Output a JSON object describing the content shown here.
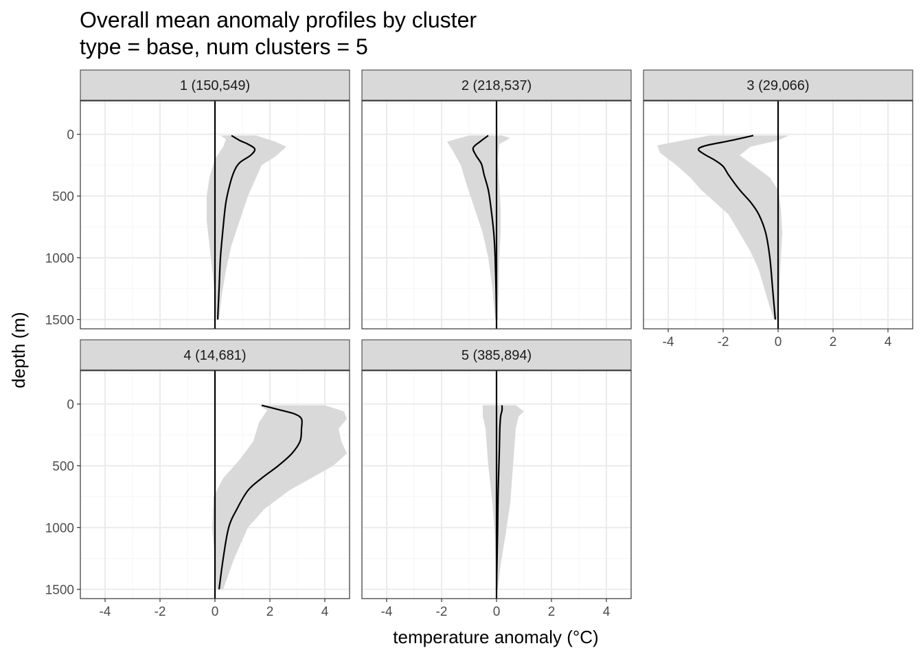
{
  "chart_data": {
    "type": "area",
    "title": "Overall mean anomaly profiles by cluster",
    "subtitle": "type = base, num clusters = 5",
    "xlabel": "temperature anomaly (°C)",
    "ylabel": "depth (m)",
    "xlim": [
      -4.9,
      4.9
    ],
    "ylim": [
      1575,
      -270
    ],
    "x_ticks": [
      -4,
      -2,
      0,
      2,
      4
    ],
    "x_tick_labels": [
      "-4",
      "-2",
      "0",
      "2",
      "4"
    ],
    "y_ticks": [
      0,
      500,
      1000,
      1500
    ],
    "y_tick_labels": [
      "0",
      "500",
      "1000",
      "1500"
    ],
    "grid": true,
    "reference_line_x": 0,
    "colors": {
      "ribbon": "#d9d9d9",
      "line": "#000000",
      "strip": "#d9d9d9",
      "grid_major": "#ebebeb",
      "grid_minor": "#f5f5f5"
    },
    "panels": [
      {
        "label": "1 (150,549)",
        "mean": [
          [
            0.6,
            10
          ],
          [
            0.9,
            50
          ],
          [
            1.2,
            80
          ],
          [
            1.45,
            120
          ],
          [
            1.3,
            170
          ],
          [
            0.9,
            230
          ],
          [
            0.7,
            300
          ],
          [
            0.55,
            400
          ],
          [
            0.4,
            550
          ],
          [
            0.3,
            750
          ],
          [
            0.2,
            1000
          ],
          [
            0.15,
            1250
          ],
          [
            0.1,
            1500
          ]
        ],
        "lower": [
          [
            0.2,
            10
          ],
          [
            0.4,
            40
          ],
          [
            0.3,
            100
          ],
          [
            0.0,
            200
          ],
          [
            -0.2,
            350
          ],
          [
            -0.3,
            500
          ],
          [
            -0.3,
            700
          ],
          [
            -0.2,
            900
          ],
          [
            -0.1,
            1100
          ],
          [
            0.0,
            1300
          ],
          [
            0.05,
            1500
          ]
        ],
        "upper": [
          [
            1.5,
            10
          ],
          [
            2.2,
            60
          ],
          [
            2.6,
            100
          ],
          [
            2.2,
            180
          ],
          [
            1.7,
            250
          ],
          [
            1.5,
            350
          ],
          [
            1.2,
            500
          ],
          [
            0.9,
            700
          ],
          [
            0.6,
            900
          ],
          [
            0.4,
            1100
          ],
          [
            0.25,
            1300
          ],
          [
            0.15,
            1500
          ]
        ]
      },
      {
        "label": "2 (218,537)",
        "mean": [
          [
            -0.3,
            10
          ],
          [
            -0.6,
            60
          ],
          [
            -0.85,
            110
          ],
          [
            -0.75,
            170
          ],
          [
            -0.55,
            240
          ],
          [
            -0.45,
            330
          ],
          [
            -0.3,
            450
          ],
          [
            -0.2,
            600
          ],
          [
            -0.1,
            800
          ],
          [
            -0.05,
            1000
          ],
          [
            -0.02,
            1250
          ],
          [
            0.0,
            1500
          ]
        ],
        "lower": [
          [
            -1.0,
            10
          ],
          [
            -1.8,
            60
          ],
          [
            -1.6,
            130
          ],
          [
            -1.3,
            250
          ],
          [
            -1.1,
            400
          ],
          [
            -0.8,
            600
          ],
          [
            -0.5,
            800
          ],
          [
            -0.3,
            1000
          ],
          [
            -0.15,
            1250
          ],
          [
            -0.05,
            1500
          ]
        ],
        "upper": [
          [
            0.2,
            10
          ],
          [
            0.5,
            30
          ],
          [
            0.1,
            80
          ],
          [
            0.05,
            200
          ],
          [
            0.1,
            400
          ],
          [
            0.15,
            600
          ],
          [
            0.15,
            800
          ],
          [
            0.1,
            1000
          ],
          [
            0.08,
            1250
          ],
          [
            0.05,
            1500
          ]
        ]
      },
      {
        "label": "3 (29,066)",
        "mean": [
          [
            -0.9,
            10
          ],
          [
            -1.7,
            50
          ],
          [
            -2.6,
            90
          ],
          [
            -2.9,
            120
          ],
          [
            -2.7,
            160
          ],
          [
            -2.3,
            210
          ],
          [
            -2.0,
            260
          ],
          [
            -1.8,
            330
          ],
          [
            -1.4,
            450
          ],
          [
            -1.0,
            550
          ],
          [
            -0.7,
            650
          ],
          [
            -0.45,
            800
          ],
          [
            -0.3,
            1000
          ],
          [
            -0.2,
            1250
          ],
          [
            -0.1,
            1500
          ]
        ],
        "lower": [
          [
            -2.5,
            10
          ],
          [
            -4.4,
            90
          ],
          [
            -4.3,
            150
          ],
          [
            -3.7,
            250
          ],
          [
            -3.2,
            350
          ],
          [
            -2.8,
            450
          ],
          [
            -2.3,
            550
          ],
          [
            -1.8,
            650
          ],
          [
            -1.4,
            800
          ],
          [
            -1.0,
            950
          ],
          [
            -0.7,
            1100
          ],
          [
            -0.5,
            1250
          ],
          [
            -0.3,
            1400
          ],
          [
            -0.15,
            1500
          ]
        ],
        "upper": [
          [
            0.4,
            10
          ],
          [
            0.0,
            50
          ],
          [
            -1.0,
            100
          ],
          [
            -1.4,
            170
          ],
          [
            -0.9,
            250
          ],
          [
            -0.3,
            350
          ],
          [
            0.0,
            450
          ],
          [
            0.1,
            600
          ],
          [
            0.15,
            800
          ],
          [
            0.1,
            1000
          ],
          [
            0.05,
            1250
          ],
          [
            0.0,
            1500
          ]
        ]
      },
      {
        "label": "4 (14,681)",
        "mean": [
          [
            1.7,
            10
          ],
          [
            2.4,
            50
          ],
          [
            2.9,
            80
          ],
          [
            3.15,
            120
          ],
          [
            3.15,
            200
          ],
          [
            3.1,
            300
          ],
          [
            2.8,
            400
          ],
          [
            2.3,
            500
          ],
          [
            1.7,
            600
          ],
          [
            1.2,
            700
          ],
          [
            0.8,
            850
          ],
          [
            0.5,
            1000
          ],
          [
            0.3,
            1250
          ],
          [
            0.15,
            1500
          ]
        ],
        "lower": [
          [
            1.6,
            10
          ],
          [
            1.9,
            50
          ],
          [
            1.6,
            150
          ],
          [
            1.4,
            300
          ],
          [
            0.9,
            450
          ],
          [
            0.3,
            600
          ],
          [
            -0.05,
            750
          ],
          [
            -0.1,
            1000
          ],
          [
            0.0,
            1250
          ],
          [
            0.05,
            1500
          ]
        ],
        "upper": [
          [
            4.0,
            10
          ],
          [
            4.7,
            60
          ],
          [
            4.8,
            120
          ],
          [
            4.5,
            200
          ],
          [
            4.6,
            300
          ],
          [
            4.8,
            400
          ],
          [
            4.3,
            500
          ],
          [
            3.5,
            600
          ],
          [
            2.7,
            700
          ],
          [
            1.8,
            850
          ],
          [
            1.2,
            1000
          ],
          [
            0.7,
            1250
          ],
          [
            0.3,
            1500
          ]
        ]
      },
      {
        "label": "5 (385,894)",
        "mean": [
          [
            0.2,
            10
          ],
          [
            0.2,
            50
          ],
          [
            0.15,
            100
          ],
          [
            0.12,
            200
          ],
          [
            0.1,
            400
          ],
          [
            0.06,
            700
          ],
          [
            0.04,
            1000
          ],
          [
            0.02,
            1250
          ],
          [
            0.0,
            1500
          ]
        ],
        "lower": [
          [
            -0.5,
            10
          ],
          [
            -0.5,
            100
          ],
          [
            -0.4,
            200
          ],
          [
            -0.3,
            500
          ],
          [
            -0.15,
            800
          ],
          [
            -0.05,
            1100
          ],
          [
            0.0,
            1500
          ]
        ],
        "upper": [
          [
            0.7,
            10
          ],
          [
            1.0,
            60
          ],
          [
            0.8,
            100
          ],
          [
            0.7,
            200
          ],
          [
            0.6,
            500
          ],
          [
            0.5,
            800
          ],
          [
            0.3,
            1100
          ],
          [
            0.15,
            1300
          ],
          [
            0.05,
            1500
          ]
        ]
      }
    ]
  }
}
